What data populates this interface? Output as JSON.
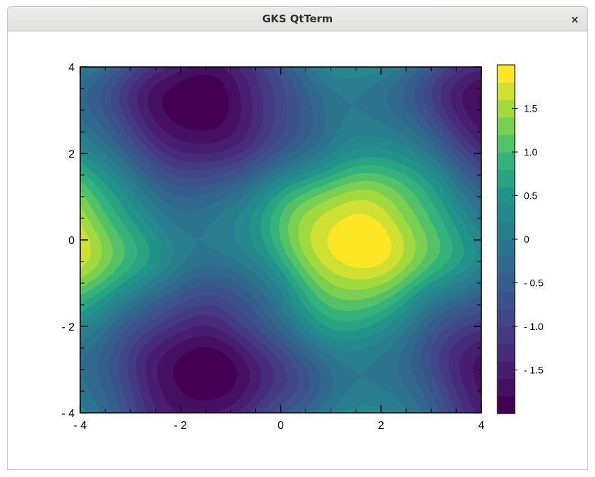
{
  "window": {
    "title": "GKS QtTerm",
    "close_glyph": "×",
    "close_icon": "close-icon"
  },
  "chart_data": {
    "type": "heatmap",
    "title": "",
    "xlabel": "",
    "ylabel": "",
    "xlim": [
      -4,
      4
    ],
    "ylim": [
      -4,
      4
    ],
    "zlim": [
      -2,
      2
    ],
    "x_ticks": [
      -4,
      -2,
      0,
      2,
      4
    ],
    "y_ticks": [
      -4,
      -2,
      0,
      2,
      4
    ],
    "x_tick_labels": [
      "- 4",
      "- 2",
      "0",
      "2",
      "4"
    ],
    "y_tick_labels": [
      "- 4",
      "- 2",
      "0",
      "2",
      "4"
    ],
    "colorbar_ticks": [
      1.5,
      1.0,
      0.5,
      0,
      -0.5,
      -1.0,
      -1.5
    ],
    "colorbar_tick_labels": [
      "1.5",
      "1.0",
      "0.5",
      "0",
      "- 0.5",
      "- 1.0",
      "- 1.5"
    ],
    "colormap": "viridis",
    "levels": 20,
    "grid": false,
    "legend": "colorbar-right",
    "features": [
      {
        "kind": "maximum",
        "x": 1.6,
        "y": 0,
        "z": 2.0
      },
      {
        "kind": "maximum",
        "x": -4,
        "y": 0,
        "z": 1.9
      },
      {
        "kind": "minimum",
        "x": -1.6,
        "y": 3.1,
        "z": -1.95
      },
      {
        "kind": "minimum",
        "x": -1.6,
        "y": -3.1,
        "z": -1.95
      },
      {
        "kind": "minimum",
        "x": 4,
        "y": 3.1,
        "z": -1.6
      },
      {
        "kind": "minimum",
        "x": 4,
        "y": -3.1,
        "z": -1.6
      }
    ]
  }
}
